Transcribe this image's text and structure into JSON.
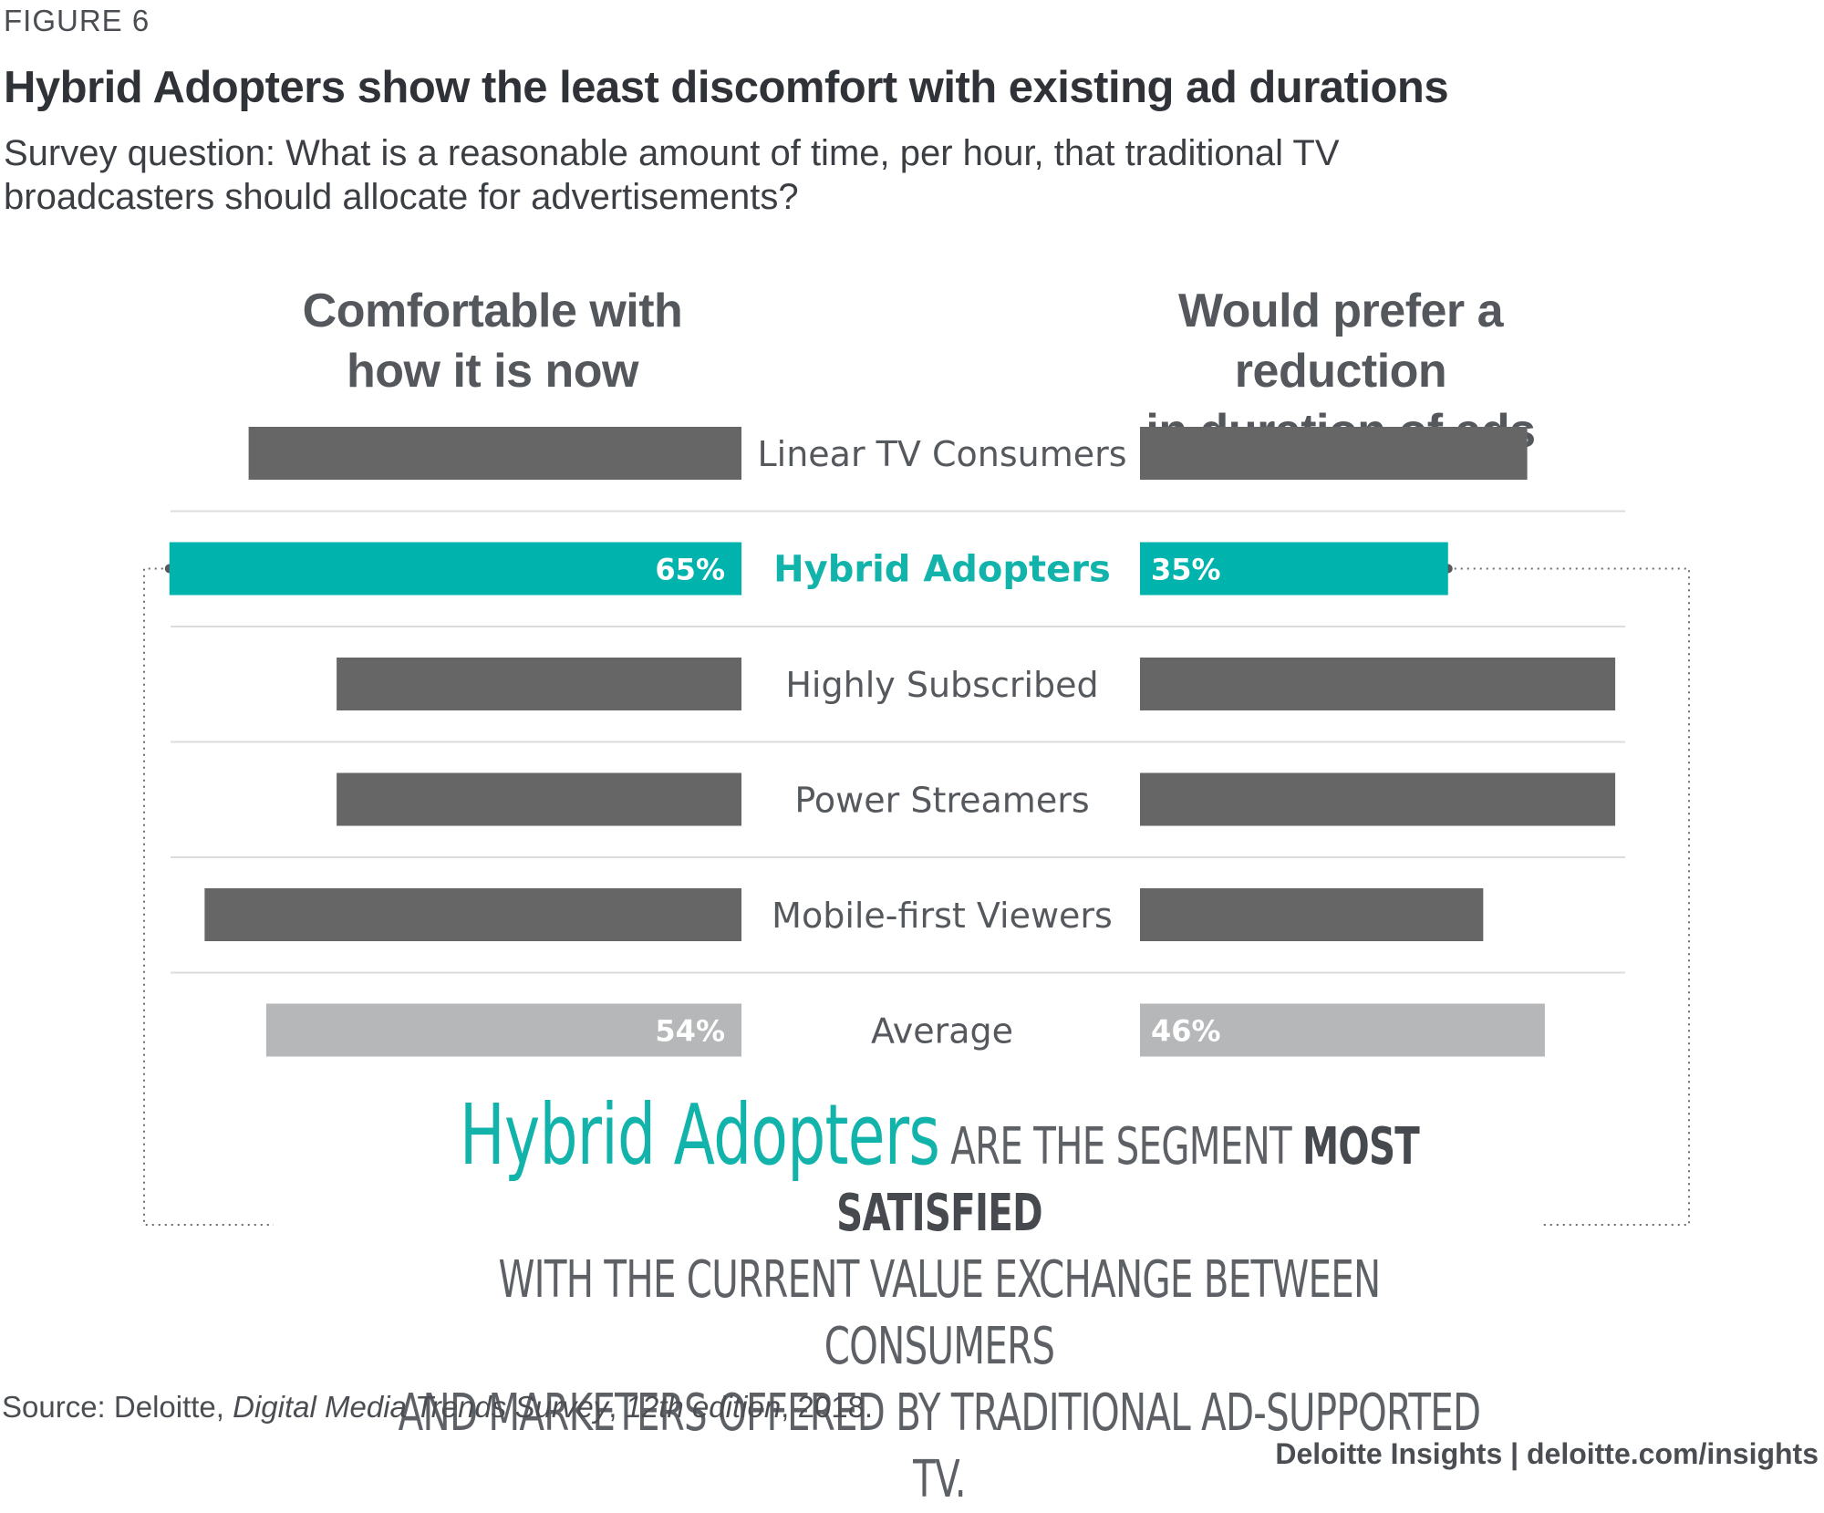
{
  "figure_label": "FIGURE 6",
  "title": "Hybrid Adopters show the least discomfort with existing ad durations",
  "subtitle": "Survey question: What is a reasonable amount of time, per hour, that traditional TV broadcasters should allocate for advertisements?",
  "chart_data": {
    "type": "bar",
    "orientation": "horizontal-diverging",
    "left_header_line1": "Comfortable with",
    "left_header_line2": "how it is now",
    "right_header_line1": "Would prefer a reduction",
    "right_header_line2": "in duration of ads",
    "categories": [
      "Linear TV Consumers",
      "Hybrid Adopters",
      "Highly Subscribed",
      "Power Streamers",
      "Mobile-first Viewers",
      "Average"
    ],
    "series": [
      {
        "name": "Comfortable with how it is now",
        "values": [
          56,
          65,
          46,
          46,
          61,
          54
        ]
      },
      {
        "name": "Would prefer a reduction in duration of ads",
        "values": [
          44,
          35,
          54,
          54,
          39,
          46
        ]
      }
    ],
    "data_labels": {
      "Hybrid Adopters": {
        "left": "65%",
        "right": "35%"
      },
      "Average": {
        "left": "54%",
        "right": "46%"
      }
    },
    "highlight_category": "Hybrid Adopters",
    "colors": {
      "default": "#666666",
      "highlight": "#00b3ad",
      "average": "#b5b7b8",
      "label_highlight": "#12b3ab"
    }
  },
  "takeaway": {
    "highlight": "Hybrid Adopters",
    "part1": " ARE THE SEGMENT ",
    "strong": "MOST SATISFIED",
    "line2": "WITH THE CURRENT VALUE EXCHANGE BETWEEN CONSUMERS",
    "line3": "AND MARKETERS OFFERED BY TRADITIONAL AD-SUPPORTED TV."
  },
  "source": {
    "prefix": "Source: Deloitte, ",
    "publication": "Digital Media Trends Survey",
    "sep": ", ",
    "edition": "12th edition",
    "suffix": ", 2018."
  },
  "footer": "Deloitte Insights | deloitte.com/insights"
}
